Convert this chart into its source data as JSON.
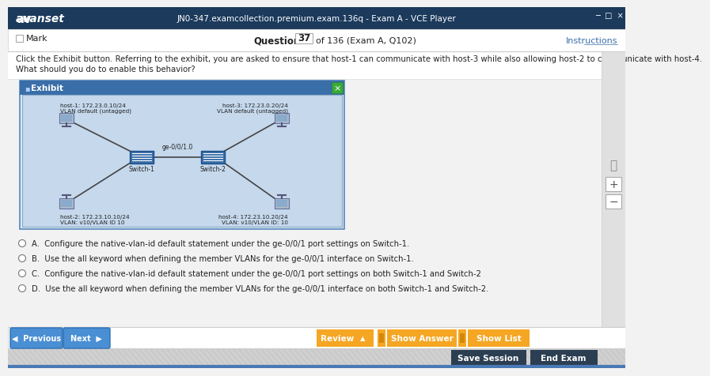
{
  "title_bar_text": "JN0-347.examcollection.premium.exam.136q - Exam A - VCE Player",
  "title_bar_bg": "#1b3a5c",
  "logo_text": "avanset",
  "mark_text": "Mark",
  "question_text": "Question",
  "question_num": "37",
  "question_of": "of 136 (Exam A, Q102)",
  "instructions_text": "Instructions",
  "body_bg": "#f2f2f2",
  "header_bg": "#ffffff",
  "question_body_line1": "Click the Exhibit button. Referring to the exhibit, you are asked to ensure that host-1 can communicate with host-3 while also allowing host-2 to communicate with host-4.",
  "question_body_line2": "What should you do to enable this behavior?",
  "exhibit_title": "Exhibit",
  "exhibit_title_bg": "#3a6ea8",
  "exhibit_bg": "#dce9f5",
  "exhibit_border": "#5588bb",
  "exhibit_inner_bg": "#c5d8ec",
  "host1_label_l1": "host-1: 172.23.0.10/24",
  "host1_label_l2": "VLAN default (untagged)",
  "host2_label_l1": "host-2: 172.23.10.10/24",
  "host2_label_l2": "VLAN: v10/VLAN ID 10",
  "host3_label_l1": "host-3: 172.23.0.20/24",
  "host3_label_l2": "VLAN default (untagged)",
  "host4_label_l1": "host-4: 172.23.10.20/24",
  "host4_label_l2": "VLAN: v10/VLAN ID: 10",
  "switch1_label": "Switch-1",
  "switch2_label": "Switch-2",
  "link_label": "ge-0/0/1.0",
  "options": [
    "A.  Configure the native-vlan-id default statement under the ge-0/0/1 port settings on Switch-1.",
    "B.  Use the all keyword when defining the member VLANs for the ge-0/0/1 interface on Switch-1.",
    "C.  Configure the native-vlan-id default statement under the ge-0/0/1 port settings on both Switch-1 and Switch-2",
    "D.  Use the all keyword when defining the member VLANs for the ge-0/0/1 interface on both Switch-1 and Switch-2."
  ],
  "btn_prev_bg": "#4a8fd4",
  "btn_next_bg": "#4a8fd4",
  "btn_review_bg": "#f5a623",
  "btn_answer_bg": "#f5a623",
  "btn_list_bg": "#f5a623",
  "btn_save_bg": "#2c3e52",
  "btn_end_bg": "#2c3e52",
  "bottom_stripe_bg": "#d0d0d0",
  "blue_accent": "#4a7ab5",
  "sidebar_bg": "#e0e0e0",
  "white": "#ffffff",
  "light_gray": "#f5f5f5",
  "text_dark": "#222222",
  "text_blue": "#3a6ea8"
}
